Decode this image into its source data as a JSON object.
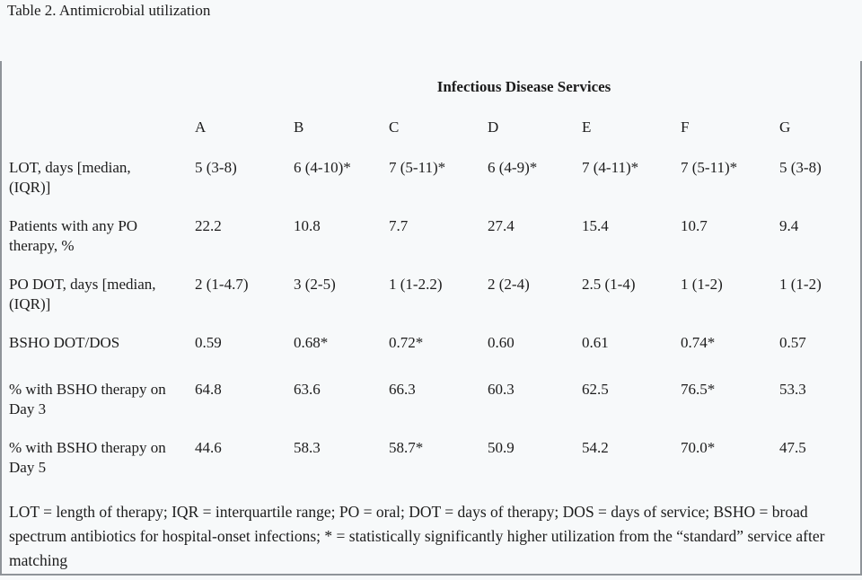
{
  "title": "Table 2. Antimicrobial utilization",
  "table": {
    "group_header": "Infectious Disease Services",
    "columns": [
      "A",
      "B",
      "C",
      "D",
      "E",
      "F",
      "G"
    ],
    "rows": [
      {
        "label": "LOT, days [median, (IQR)]",
        "values": [
          "5 (3-8)",
          "6 (4-10)*",
          "7 (5-11)*",
          "6 (4-9)*",
          "7 (4-11)*",
          "7 (5-11)*",
          "5 (3-8)"
        ]
      },
      {
        "label": "Patients with any PO therapy, %",
        "values": [
          "22.2",
          "10.8",
          "7.7",
          "27.4",
          "15.4",
          "10.7",
          "9.4"
        ]
      },
      {
        "label": "PO DOT, days [median, (IQR)]",
        "values": [
          "2 (1-4.7)",
          "3 (2-5)",
          "1 (1-2.2)",
          "2 (2-4)",
          "2.5 (1-4)",
          "1 (1-2)",
          "1 (1-2)"
        ]
      },
      {
        "label": "BSHO DOT/DOS",
        "values": [
          "0.59",
          "0.68*",
          "0.72*",
          "0.60",
          "0.61",
          "0.74*",
          "0.57"
        ]
      },
      {
        "label": "% with BSHO therapy on Day 3",
        "values": [
          "64.8",
          "63.6",
          "66.3",
          "60.3",
          "62.5",
          "76.5*",
          "53.3"
        ]
      },
      {
        "label": "% with BSHO therapy on Day 5",
        "values": [
          "44.6",
          "58.3",
          "58.7*",
          "50.9",
          "54.2",
          "70.0*",
          "47.5"
        ]
      }
    ],
    "footnote": "LOT = length of therapy; IQR = interquartile range; PO = oral; DOT = days of therapy; DOS = days of service; BSHO = broad spectrum antibiotics for hospital-onset infections; * = statistically significantly higher utilization from the “standard” service after matching"
  },
  "colors": {
    "background": "#f7f9fa",
    "border": "#8f9499",
    "text": "#1c1c1c"
  }
}
